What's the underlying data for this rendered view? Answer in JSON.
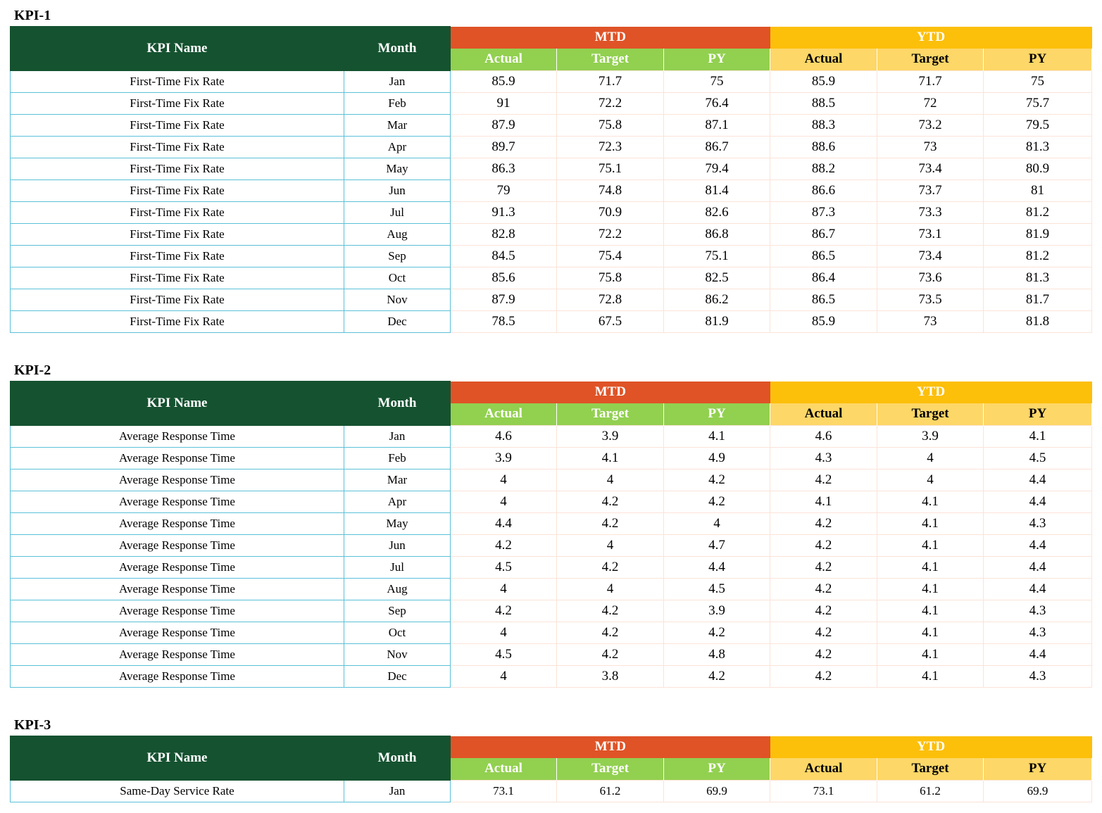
{
  "headers": {
    "kpi_name": "KPI Name",
    "month": "Month",
    "mtd": "MTD",
    "ytd": "YTD",
    "actual": "Actual",
    "target": "Target",
    "py": "PY"
  },
  "colors": {
    "header_dark_green": "#155230",
    "mtd_orange": "#df5327",
    "ytd_yellow": "#fcbf0a",
    "mtd_sub_green": "#92d050",
    "ytd_sub_yellow": "#fdd767"
  },
  "kpis": [
    {
      "title": "KPI-1",
      "rows": [
        {
          "name": "First-Time Fix Rate",
          "month": "Jan",
          "mtd_actual": "85.9",
          "mtd_target": "71.7",
          "mtd_py": "75",
          "ytd_actual": "85.9",
          "ytd_target": "71.7",
          "ytd_py": "75"
        },
        {
          "name": "First-Time Fix Rate",
          "month": "Feb",
          "mtd_actual": "91",
          "mtd_target": "72.2",
          "mtd_py": "76.4",
          "ytd_actual": "88.5",
          "ytd_target": "72",
          "ytd_py": "75.7"
        },
        {
          "name": "First-Time Fix Rate",
          "month": "Mar",
          "mtd_actual": "87.9",
          "mtd_target": "75.8",
          "mtd_py": "87.1",
          "ytd_actual": "88.3",
          "ytd_target": "73.2",
          "ytd_py": "79.5"
        },
        {
          "name": "First-Time Fix Rate",
          "month": "Apr",
          "mtd_actual": "89.7",
          "mtd_target": "72.3",
          "mtd_py": "86.7",
          "ytd_actual": "88.6",
          "ytd_target": "73",
          "ytd_py": "81.3"
        },
        {
          "name": "First-Time Fix Rate",
          "month": "May",
          "mtd_actual": "86.3",
          "mtd_target": "75.1",
          "mtd_py": "79.4",
          "ytd_actual": "88.2",
          "ytd_target": "73.4",
          "ytd_py": "80.9"
        },
        {
          "name": "First-Time Fix Rate",
          "month": "Jun",
          "mtd_actual": "79",
          "mtd_target": "74.8",
          "mtd_py": "81.4",
          "ytd_actual": "86.6",
          "ytd_target": "73.7",
          "ytd_py": "81"
        },
        {
          "name": "First-Time Fix Rate",
          "month": "Jul",
          "mtd_actual": "91.3",
          "mtd_target": "70.9",
          "mtd_py": "82.6",
          "ytd_actual": "87.3",
          "ytd_target": "73.3",
          "ytd_py": "81.2"
        },
        {
          "name": "First-Time Fix Rate",
          "month": "Aug",
          "mtd_actual": "82.8",
          "mtd_target": "72.2",
          "mtd_py": "86.8",
          "ytd_actual": "86.7",
          "ytd_target": "73.1",
          "ytd_py": "81.9"
        },
        {
          "name": "First-Time Fix Rate",
          "month": "Sep",
          "mtd_actual": "84.5",
          "mtd_target": "75.4",
          "mtd_py": "75.1",
          "ytd_actual": "86.5",
          "ytd_target": "73.4",
          "ytd_py": "81.2"
        },
        {
          "name": "First-Time Fix Rate",
          "month": "Oct",
          "mtd_actual": "85.6",
          "mtd_target": "75.8",
          "mtd_py": "82.5",
          "ytd_actual": "86.4",
          "ytd_target": "73.6",
          "ytd_py": "81.3"
        },
        {
          "name": "First-Time Fix Rate",
          "month": "Nov",
          "mtd_actual": "87.9",
          "mtd_target": "72.8",
          "mtd_py": "86.2",
          "ytd_actual": "86.5",
          "ytd_target": "73.5",
          "ytd_py": "81.7"
        },
        {
          "name": "First-Time Fix Rate",
          "month": "Dec",
          "mtd_actual": "78.5",
          "mtd_target": "67.5",
          "mtd_py": "81.9",
          "ytd_actual": "85.9",
          "ytd_target": "73",
          "ytd_py": "81.8"
        }
      ]
    },
    {
      "title": "KPI-2",
      "rows": [
        {
          "name": "Average Response Time",
          "month": "Jan",
          "mtd_actual": "4.6",
          "mtd_target": "3.9",
          "mtd_py": "4.1",
          "ytd_actual": "4.6",
          "ytd_target": "3.9",
          "ytd_py": "4.1"
        },
        {
          "name": "Average Response Time",
          "month": "Feb",
          "mtd_actual": "3.9",
          "mtd_target": "4.1",
          "mtd_py": "4.9",
          "ytd_actual": "4.3",
          "ytd_target": "4",
          "ytd_py": "4.5"
        },
        {
          "name": "Average Response Time",
          "month": "Mar",
          "mtd_actual": "4",
          "mtd_target": "4",
          "mtd_py": "4.2",
          "ytd_actual": "4.2",
          "ytd_target": "4",
          "ytd_py": "4.4"
        },
        {
          "name": "Average Response Time",
          "month": "Apr",
          "mtd_actual": "4",
          "mtd_target": "4.2",
          "mtd_py": "4.2",
          "ytd_actual": "4.1",
          "ytd_target": "4.1",
          "ytd_py": "4.4"
        },
        {
          "name": "Average Response Time",
          "month": "May",
          "mtd_actual": "4.4",
          "mtd_target": "4.2",
          "mtd_py": "4",
          "ytd_actual": "4.2",
          "ytd_target": "4.1",
          "ytd_py": "4.3"
        },
        {
          "name": "Average Response Time",
          "month": "Jun",
          "mtd_actual": "4.2",
          "mtd_target": "4",
          "mtd_py": "4.7",
          "ytd_actual": "4.2",
          "ytd_target": "4.1",
          "ytd_py": "4.4"
        },
        {
          "name": "Average Response Time",
          "month": "Jul",
          "mtd_actual": "4.5",
          "mtd_target": "4.2",
          "mtd_py": "4.4",
          "ytd_actual": "4.2",
          "ytd_target": "4.1",
          "ytd_py": "4.4"
        },
        {
          "name": "Average Response Time",
          "month": "Aug",
          "mtd_actual": "4",
          "mtd_target": "4",
          "mtd_py": "4.5",
          "ytd_actual": "4.2",
          "ytd_target": "4.1",
          "ytd_py": "4.4"
        },
        {
          "name": "Average Response Time",
          "month": "Sep",
          "mtd_actual": "4.2",
          "mtd_target": "4.2",
          "mtd_py": "3.9",
          "ytd_actual": "4.2",
          "ytd_target": "4.1",
          "ytd_py": "4.3"
        },
        {
          "name": "Average Response Time",
          "month": "Oct",
          "mtd_actual": "4",
          "mtd_target": "4.2",
          "mtd_py": "4.2",
          "ytd_actual": "4.2",
          "ytd_target": "4.1",
          "ytd_py": "4.3"
        },
        {
          "name": "Average Response Time",
          "month": "Nov",
          "mtd_actual": "4.5",
          "mtd_target": "4.2",
          "mtd_py": "4.8",
          "ytd_actual": "4.2",
          "ytd_target": "4.1",
          "ytd_py": "4.4"
        },
        {
          "name": "Average Response Time",
          "month": "Dec",
          "mtd_actual": "4",
          "mtd_target": "3.8",
          "mtd_py": "4.2",
          "ytd_actual": "4.2",
          "ytd_target": "4.1",
          "ytd_py": "4.3"
        }
      ]
    },
    {
      "title": "KPI-3",
      "rows": [
        {
          "name": "Same-Day Service Rate",
          "month": "Jan",
          "mtd_actual": "73.1",
          "mtd_target": "61.2",
          "mtd_py": "69.9",
          "ytd_actual": "73.1",
          "ytd_target": "61.2",
          "ytd_py": "69.9"
        }
      ]
    }
  ]
}
